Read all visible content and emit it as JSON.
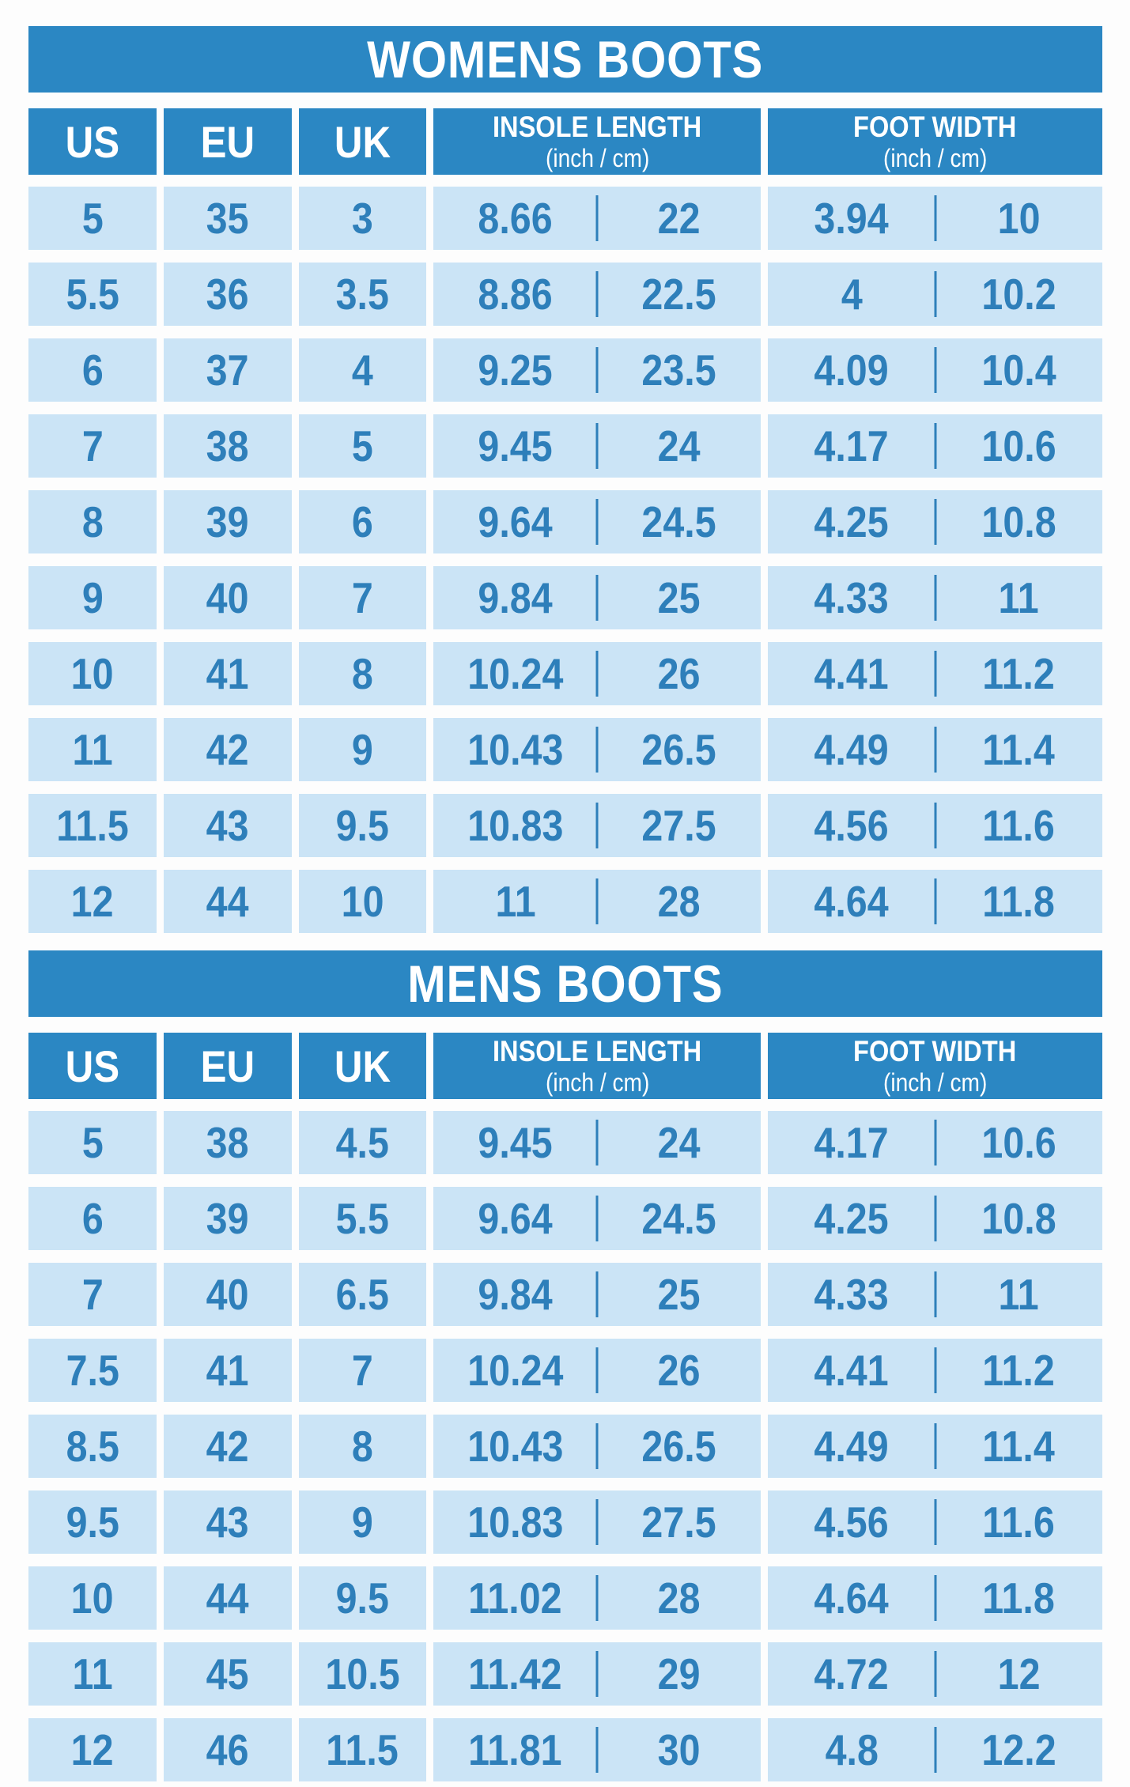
{
  "colors": {
    "header_bg": "#2b87c3",
    "row_bg": "#cbe4f6",
    "value_text": "#2e7fba",
    "header_text": "#ffffff",
    "page_bg": "#fdfdfd",
    "divider": "#2e7fba"
  },
  "chart_data": [
    {
      "type": "table",
      "title": "WOMENS BOOTS",
      "headers": {
        "us": "US",
        "eu": "EU",
        "uk": "UK",
        "insole_title": "INSOLE LENGTH",
        "insole_unit": "(inch / cm)",
        "foot_title": "FOOT WIDTH",
        "foot_unit": "(inch / cm)"
      },
      "rows": [
        {
          "us": "5",
          "eu": "35",
          "uk": "3",
          "insole_inch": "8.66",
          "insole_cm": "22",
          "foot_inch": "3.94",
          "foot_cm": "10"
        },
        {
          "us": "5.5",
          "eu": "36",
          "uk": "3.5",
          "insole_inch": "8.86",
          "insole_cm": "22.5",
          "foot_inch": "4",
          "foot_cm": "10.2"
        },
        {
          "us": "6",
          "eu": "37",
          "uk": "4",
          "insole_inch": "9.25",
          "insole_cm": "23.5",
          "foot_inch": "4.09",
          "foot_cm": "10.4"
        },
        {
          "us": "7",
          "eu": "38",
          "uk": "5",
          "insole_inch": "9.45",
          "insole_cm": "24",
          "foot_inch": "4.17",
          "foot_cm": "10.6"
        },
        {
          "us": "8",
          "eu": "39",
          "uk": "6",
          "insole_inch": "9.64",
          "insole_cm": "24.5",
          "foot_inch": "4.25",
          "foot_cm": "10.8"
        },
        {
          "us": "9",
          "eu": "40",
          "uk": "7",
          "insole_inch": "9.84",
          "insole_cm": "25",
          "foot_inch": "4.33",
          "foot_cm": "11"
        },
        {
          "us": "10",
          "eu": "41",
          "uk": "8",
          "insole_inch": "10.24",
          "insole_cm": "26",
          "foot_inch": "4.41",
          "foot_cm": "11.2"
        },
        {
          "us": "11",
          "eu": "42",
          "uk": "9",
          "insole_inch": "10.43",
          "insole_cm": "26.5",
          "foot_inch": "4.49",
          "foot_cm": "11.4"
        },
        {
          "us": "11.5",
          "eu": "43",
          "uk": "9.5",
          "insole_inch": "10.83",
          "insole_cm": "27.5",
          "foot_inch": "4.56",
          "foot_cm": "11.6"
        },
        {
          "us": "12",
          "eu": "44",
          "uk": "10",
          "insole_inch": "11",
          "insole_cm": "28",
          "foot_inch": "4.64",
          "foot_cm": "11.8"
        }
      ]
    },
    {
      "type": "table",
      "title": "MENS BOOTS",
      "headers": {
        "us": "US",
        "eu": "EU",
        "uk": "UK",
        "insole_title": "INSOLE LENGTH",
        "insole_unit": "(inch / cm)",
        "foot_title": "FOOT WIDTH",
        "foot_unit": "(inch / cm)"
      },
      "rows": [
        {
          "us": "5",
          "eu": "38",
          "uk": "4.5",
          "insole_inch": "9.45",
          "insole_cm": "24",
          "foot_inch": "4.17",
          "foot_cm": "10.6"
        },
        {
          "us": "6",
          "eu": "39",
          "uk": "5.5",
          "insole_inch": "9.64",
          "insole_cm": "24.5",
          "foot_inch": "4.25",
          "foot_cm": "10.8"
        },
        {
          "us": "7",
          "eu": "40",
          "uk": "6.5",
          "insole_inch": "9.84",
          "insole_cm": "25",
          "foot_inch": "4.33",
          "foot_cm": "11"
        },
        {
          "us": "7.5",
          "eu": "41",
          "uk": "7",
          "insole_inch": "10.24",
          "insole_cm": "26",
          "foot_inch": "4.41",
          "foot_cm": "11.2"
        },
        {
          "us": "8.5",
          "eu": "42",
          "uk": "8",
          "insole_inch": "10.43",
          "insole_cm": "26.5",
          "foot_inch": "4.49",
          "foot_cm": "11.4"
        },
        {
          "us": "9.5",
          "eu": "43",
          "uk": "9",
          "insole_inch": "10.83",
          "insole_cm": "27.5",
          "foot_inch": "4.56",
          "foot_cm": "11.6"
        },
        {
          "us": "10",
          "eu": "44",
          "uk": "9.5",
          "insole_inch": "11.02",
          "insole_cm": "28",
          "foot_inch": "4.64",
          "foot_cm": "11.8"
        },
        {
          "us": "11",
          "eu": "45",
          "uk": "10.5",
          "insole_inch": "11.42",
          "insole_cm": "29",
          "foot_inch": "4.72",
          "foot_cm": "12"
        },
        {
          "us": "12",
          "eu": "46",
          "uk": "11.5",
          "insole_inch": "11.81",
          "insole_cm": "30",
          "foot_inch": "4.8",
          "foot_cm": "12.2"
        }
      ]
    }
  ]
}
